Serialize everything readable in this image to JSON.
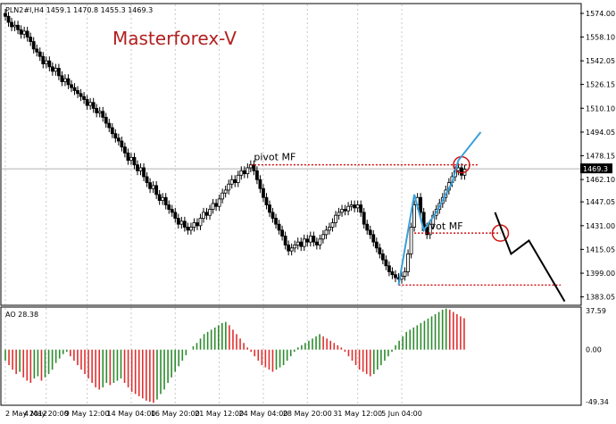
{
  "chart_data": [
    {
      "type": "candlestick",
      "header": "PLN2#I,H4  1459.1 1470.8 1455.3 1469.3",
      "watermark": "Masterforex-V",
      "current_price_label": "1469.3",
      "ylim": [
        1378,
        1580
      ],
      "y_ticks": [
        "1574.00",
        "1558.10",
        "1542.05",
        "1526.15",
        "1510.10",
        "1494.05",
        "1478.15",
        "1462.10",
        "1447.05",
        "1431.00",
        "1415.05",
        "1399.00",
        "1383.05"
      ],
      "y_tick_values": [
        1574.0,
        1558.1,
        1542.05,
        1526.15,
        1510.1,
        1494.05,
        1478.15,
        1462.1,
        1447.05,
        1431.0,
        1415.05,
        1399.0,
        1383.05
      ],
      "x_ticks": [
        "2 May 2012",
        "4 May 20:00",
        "9 May 12:00",
        "14 May 04:00",
        "16 May 20:00",
        "21 May 12:00",
        "24 May 04:00",
        "28 May 20:00",
        "31 May 12:00",
        "5 Jun 04:00"
      ],
      "close": [
        1572,
        1568,
        1565,
        1566,
        1563,
        1560,
        1562,
        1558,
        1555,
        1550,
        1548,
        1545,
        1540,
        1542,
        1538,
        1535,
        1537,
        1532,
        1528,
        1530,
        1526,
        1524,
        1522,
        1520,
        1518,
        1516,
        1512,
        1514,
        1510,
        1507,
        1508,
        1504,
        1500,
        1497,
        1493,
        1490,
        1488,
        1484,
        1480,
        1475,
        1477,
        1472,
        1468,
        1470,
        1464,
        1460,
        1456,
        1458,
        1452,
        1448,
        1450,
        1445,
        1442,
        1440,
        1436,
        1432,
        1434,
        1430,
        1428,
        1430,
        1433,
        1431,
        1436,
        1440,
        1438,
        1442,
        1446,
        1444,
        1449,
        1453,
        1455,
        1459,
        1462,
        1460,
        1465,
        1468,
        1466,
        1470,
        1472,
        1468,
        1462,
        1456,
        1450,
        1445,
        1440,
        1436,
        1432,
        1428,
        1424,
        1418,
        1414,
        1416,
        1418,
        1420,
        1417,
        1422,
        1420,
        1424,
        1420,
        1418,
        1422,
        1425,
        1428,
        1430,
        1433,
        1438,
        1440,
        1442,
        1441,
        1444,
        1445,
        1443,
        1445,
        1440,
        1432,
        1428,
        1425,
        1420,
        1416,
        1412,
        1408,
        1404,
        1400,
        1398,
        1396,
        1395,
        1397,
        1400,
        1412,
        1430,
        1445,
        1450,
        1440,
        1430,
        1425,
        1432,
        1438,
        1442,
        1446,
        1450,
        1455,
        1460,
        1464,
        1468,
        1470,
        1465,
        1469
      ],
      "annotations": {
        "pivot_labels": [
          "pivot MF",
          "pivot MF"
        ],
        "upper_pivot_level": 1472,
        "lower_pivot_level": 1426,
        "support_level": 1391,
        "forecast_path": [
          [
            1440
          ],
          [
            1420
          ],
          [
            1410
          ],
          [
            1425
          ],
          [
            1385
          ]
        ]
      }
    },
    {
      "type": "bar",
      "name": "AO",
      "header": "AO 28.38",
      "ylim": [
        -49.34,
        37.59
      ],
      "y_ticks": [
        "37.59",
        "0.00",
        "-49.34"
      ],
      "y_tick_values": [
        37.59,
        0,
        -49.34
      ],
      "values": [
        -10,
        -14,
        -18,
        -22,
        -20,
        -25,
        -28,
        -30,
        -26,
        -24,
        -28,
        -25,
        -22,
        -18,
        -12,
        -8,
        -4,
        -2,
        -6,
        -10,
        -14,
        -18,
        -22,
        -26,
        -30,
        -34,
        -36,
        -34,
        -30,
        -32,
        -30,
        -28,
        -26,
        -30,
        -34,
        -38,
        -40,
        -42,
        -44,
        -46,
        -47,
        -48,
        -45,
        -40,
        -36,
        -30,
        -25,
        -20,
        -15,
        -10,
        -5,
        0,
        3,
        6,
        10,
        14,
        16,
        18,
        20,
        22,
        24,
        25,
        22,
        18,
        14,
        10,
        6,
        2,
        -2,
        -6,
        -10,
        -14,
        -16,
        -18,
        -20,
        -18,
        -16,
        -14,
        -10,
        -6,
        -2,
        2,
        4,
        6,
        8,
        10,
        12,
        14,
        12,
        10,
        8,
        6,
        4,
        2,
        -2,
        -6,
        -10,
        -14,
        -18,
        -20,
        -22,
        -24,
        -22,
        -18,
        -14,
        -10,
        -6,
        -2,
        4,
        8,
        12,
        16,
        18,
        20,
        22,
        24,
        26,
        28,
        30,
        32,
        34,
        36,
        37,
        36,
        34,
        32,
        30,
        28.38
      ]
    }
  ]
}
